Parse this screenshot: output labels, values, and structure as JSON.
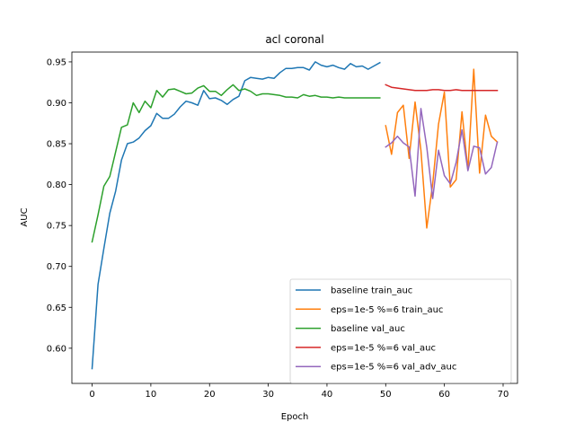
{
  "chart_data": {
    "type": "line",
    "title": "acl coronal",
    "xlabel": "Epoch",
    "ylabel": "AUC",
    "xlim": [
      -3.45,
      72.45
    ],
    "ylim": [
      0.557,
      0.962
    ],
    "xticks": [
      0,
      10,
      20,
      30,
      40,
      50,
      60,
      70
    ],
    "yticks": [
      0.6,
      0.65,
      0.7,
      0.75,
      0.8,
      0.85,
      0.9,
      0.95
    ],
    "ytick_labels": [
      "0.60",
      "0.65",
      "0.70",
      "0.75",
      "0.80",
      "0.85",
      "0.90",
      "0.95"
    ],
    "grid": false,
    "legend_position": "lower right",
    "series": [
      {
        "name": "baseline train_auc",
        "color": "#1f77b4",
        "x": [
          0,
          1,
          2,
          3,
          4,
          5,
          6,
          7,
          8,
          9,
          10,
          11,
          12,
          13,
          14,
          15,
          16,
          17,
          18,
          19,
          20,
          21,
          22,
          23,
          24,
          25,
          26,
          27,
          28,
          29,
          30,
          31,
          32,
          33,
          34,
          35,
          36,
          37,
          38,
          39,
          40,
          41,
          42,
          43,
          44,
          45,
          46,
          47,
          48,
          49
        ],
        "values": [
          0.575,
          0.678,
          0.722,
          0.765,
          0.792,
          0.83,
          0.85,
          0.852,
          0.857,
          0.866,
          0.872,
          0.887,
          0.881,
          0.881,
          0.886,
          0.895,
          0.902,
          0.9,
          0.897,
          0.915,
          0.905,
          0.906,
          0.903,
          0.898,
          0.904,
          0.908,
          0.927,
          0.931,
          0.93,
          0.929,
          0.931,
          0.93,
          0.937,
          0.942,
          0.942,
          0.943,
          0.943,
          0.94,
          0.95,
          0.946,
          0.944,
          0.946,
          0.943,
          0.941,
          0.948,
          0.944,
          0.945,
          0.941,
          0.945,
          0.949
        ]
      },
      {
        "name": "eps=1e-5 %=6 train_auc",
        "color": "#ff7f0e",
        "x": [
          50,
          51,
          52,
          53,
          54,
          55,
          56,
          57,
          58,
          59,
          60,
          61,
          62,
          63,
          64,
          65,
          66,
          67,
          68,
          69
        ],
        "values": [
          0.872,
          0.837,
          0.888,
          0.897,
          0.832,
          0.901,
          0.842,
          0.747,
          0.801,
          0.874,
          0.913,
          0.797,
          0.806,
          0.889,
          0.818,
          0.941,
          0.814,
          0.885,
          0.859,
          0.852
        ]
      },
      {
        "name": "baseline val_auc",
        "color": "#2ca02c",
        "x": [
          0,
          1,
          2,
          3,
          4,
          5,
          6,
          7,
          8,
          9,
          10,
          11,
          12,
          13,
          14,
          15,
          16,
          17,
          18,
          19,
          20,
          21,
          22,
          23,
          24,
          25,
          26,
          27,
          28,
          29,
          30,
          31,
          32,
          33,
          34,
          35,
          36,
          37,
          38,
          39,
          40,
          41,
          42,
          43,
          44,
          45,
          46,
          47,
          48,
          49
        ],
        "values": [
          0.73,
          0.763,
          0.798,
          0.81,
          0.84,
          0.87,
          0.873,
          0.9,
          0.888,
          0.902,
          0.894,
          0.915,
          0.907,
          0.916,
          0.917,
          0.914,
          0.911,
          0.912,
          0.918,
          0.921,
          0.914,
          0.914,
          0.909,
          0.916,
          0.922,
          0.915,
          0.917,
          0.914,
          0.909,
          0.911,
          0.911,
          0.91,
          0.909,
          0.907,
          0.907,
          0.906,
          0.91,
          0.908,
          0.909,
          0.907,
          0.907,
          0.906,
          0.907,
          0.906,
          0.906,
          0.906,
          0.906,
          0.906,
          0.906,
          0.906
        ]
      },
      {
        "name": "eps=1e-5 %=6 val_auc",
        "color": "#d62728",
        "x": [
          50,
          51,
          52,
          53,
          54,
          55,
          56,
          57,
          58,
          59,
          60,
          61,
          62,
          63,
          64,
          65,
          66,
          67,
          68,
          69
        ],
        "values": [
          0.922,
          0.919,
          0.918,
          0.917,
          0.916,
          0.915,
          0.915,
          0.915,
          0.916,
          0.916,
          0.915,
          0.915,
          0.916,
          0.915,
          0.915,
          0.915,
          0.915,
          0.915,
          0.915,
          0.915
        ]
      },
      {
        "name": "eps=1e-5 %=6 val_adv_auc",
        "color": "#9467bd",
        "x": [
          50,
          51,
          52,
          53,
          54,
          55,
          56,
          57,
          58,
          59,
          60,
          61,
          62,
          63,
          64,
          65,
          66,
          67,
          68,
          69
        ],
        "values": [
          0.846,
          0.851,
          0.859,
          0.851,
          0.846,
          0.786,
          0.893,
          0.846,
          0.783,
          0.842,
          0.811,
          0.801,
          0.827,
          0.867,
          0.817,
          0.847,
          0.845,
          0.813,
          0.821,
          0.852
        ]
      }
    ]
  }
}
